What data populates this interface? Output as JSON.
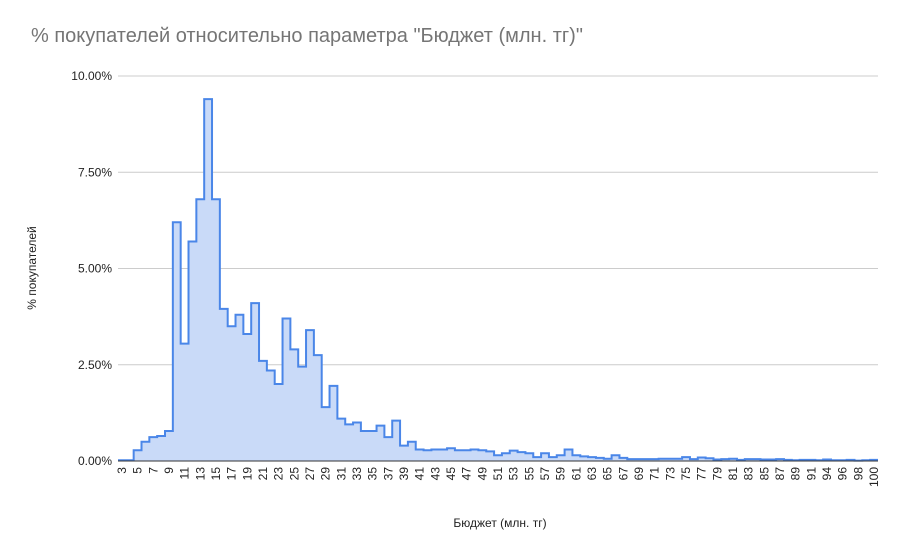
{
  "chart_data": {
    "type": "stepped-area",
    "title": "% покупателей относительно параметра \"Бюджет (млн. тг)\"",
    "x_label": "Бюджет (млн. тг)",
    "y_label": "% покупателей",
    "categories": [
      3,
      null,
      5,
      null,
      7,
      null,
      9,
      null,
      11,
      null,
      13,
      null,
      15,
      null,
      17,
      null,
      19,
      null,
      21,
      null,
      23,
      null,
      25,
      null,
      27,
      null,
      29,
      null,
      31,
      null,
      33,
      null,
      35,
      null,
      37,
      null,
      39,
      null,
      41,
      null,
      43,
      null,
      45,
      null,
      47,
      null,
      49,
      null,
      51,
      null,
      53,
      null,
      55,
      null,
      57,
      null,
      59,
      null,
      61,
      null,
      63,
      null,
      65,
      null,
      67,
      null,
      69,
      null,
      71,
      null,
      73,
      null,
      75,
      null,
      77,
      null,
      79,
      null,
      81,
      null,
      83,
      null,
      85,
      null,
      87,
      null,
      89,
      null,
      91,
      null,
      94,
      null,
      96,
      null,
      98,
      null,
      100
    ],
    "values": [
      0.02,
      0.02,
      0.28,
      0.5,
      0.62,
      0.65,
      0.78,
      6.2,
      3.05,
      5.7,
      6.8,
      9.4,
      6.8,
      3.95,
      3.5,
      3.8,
      3.3,
      4.1,
      2.6,
      2.35,
      2.0,
      3.7,
      2.9,
      2.45,
      3.4,
      2.75,
      1.4,
      1.95,
      1.1,
      0.95,
      1.0,
      0.78,
      0.78,
      0.92,
      0.62,
      1.05,
      0.4,
      0.5,
      0.3,
      0.28,
      0.3,
      0.3,
      0.33,
      0.28,
      0.28,
      0.3,
      0.28,
      0.25,
      0.15,
      0.2,
      0.27,
      0.23,
      0.2,
      0.1,
      0.2,
      0.1,
      0.15,
      0.3,
      0.15,
      0.12,
      0.1,
      0.08,
      0.06,
      0.15,
      0.08,
      0.05,
      0.05,
      0.05,
      0.05,
      0.06,
      0.06,
      0.06,
      0.1,
      0.05,
      0.09,
      0.07,
      0.04,
      0.05,
      0.06,
      0.03,
      0.05,
      0.05,
      0.04,
      0.04,
      0.05,
      0.03,
      0.02,
      0.03,
      0.03,
      0.02,
      0.04,
      0.02,
      0.02,
      0.03,
      0.01,
      0.02,
      0.03
    ],
    "color": "#4a86e8",
    "fill_color": "#c9daf8",
    "ylim": [
      0,
      10
    ],
    "yticks": [
      {
        "value": 0,
        "label": "0.00%"
      },
      {
        "value": 2.5,
        "label": "2.50%"
      },
      {
        "value": 5,
        "label": "5.00%"
      },
      {
        "value": 7.5,
        "label": "7.50%"
      },
      {
        "value": 10,
        "label": "10.00%"
      }
    ],
    "grid": true
  }
}
